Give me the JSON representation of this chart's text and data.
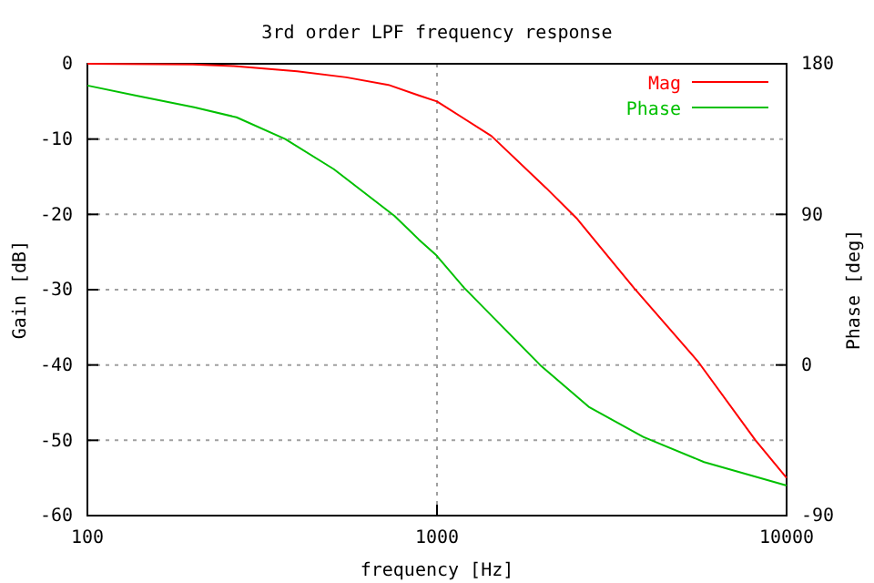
{
  "chart_data": {
    "type": "line",
    "title": "3rd order LPF frequency response",
    "xlabel": "frequency [Hz]",
    "ylabel": "Gain [dB]",
    "y2label": "Phase [deg]",
    "log": "x",
    "grid": true,
    "legend": "top right",
    "marker": "none",
    "line_style": "solid",
    "xlim": [
      100,
      10000
    ],
    "xticks": [
      100,
      1000,
      10000
    ],
    "ylim": [
      -60,
      0
    ],
    "yticks": [
      -60,
      -50,
      -40,
      -30,
      -20,
      -10,
      0
    ],
    "y2lim": [
      -90,
      180
    ],
    "y2ticks": [
      -90,
      0,
      90,
      180
    ],
    "series": [
      {
        "name": "Mag",
        "color": "#ff0000",
        "x": [
          100,
          200,
          262,
          398,
          550,
          726,
          887,
          1000,
          1432,
          2053,
          2506,
          3664,
          5570,
          8150,
          10000
        ],
        "values": [
          0,
          -0.1,
          -0.3,
          -1.0,
          -1.8,
          -2.8,
          -4.2,
          -5.0,
          -9.6,
          -16.5,
          -20.5,
          -29.8,
          -39.5,
          -50,
          -55
        ]
      },
      {
        "name": "Phase",
        "color": "#00c000",
        "axis": "y2",
        "x": [
          100,
          138,
          202,
          267,
          368,
          507,
          757,
          887,
          991,
          1197,
          1972,
          2716,
          3890,
          5806,
          10000
        ],
        "values": [
          167,
          161,
          154,
          148,
          135,
          117,
          89,
          75,
          66,
          46,
          0,
          -25,
          -43,
          -58,
          -72
        ]
      }
    ]
  }
}
